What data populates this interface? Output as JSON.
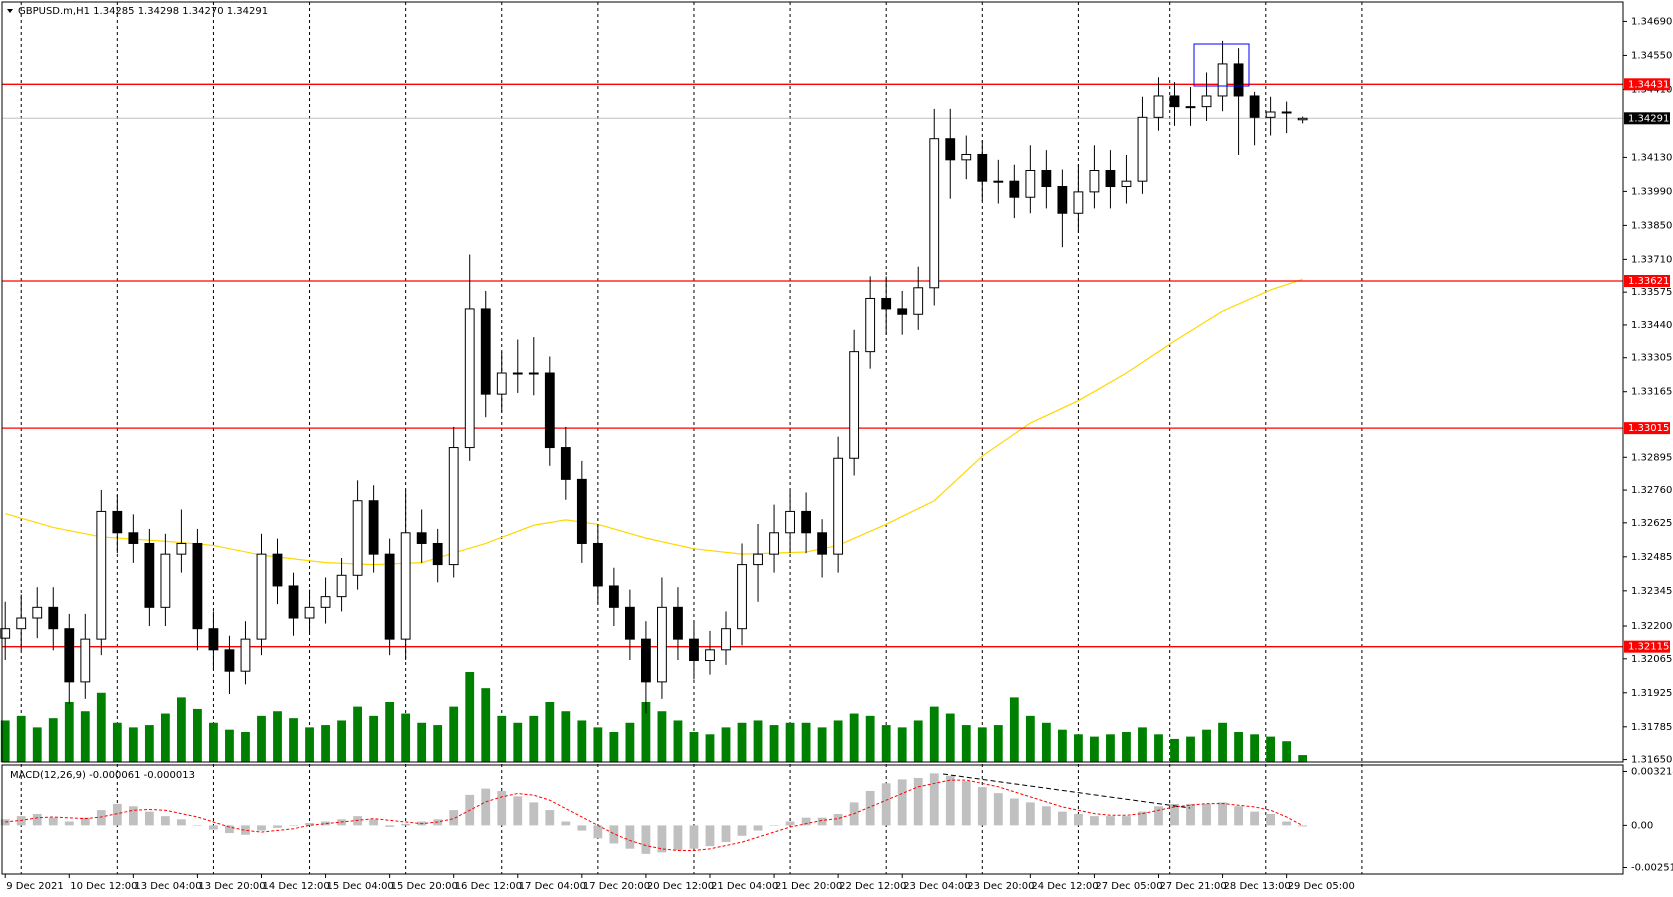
{
  "chart_data": {
    "type": "candlestick",
    "title": "GBPUSD.m,H1  1.34285 1.34298 1.34270 1.34291",
    "categories": [
      "9 Dec 2021",
      null,
      null,
      null,
      "10 Dec 12:00",
      null,
      null,
      null,
      "13 Dec 04:00",
      null,
      null,
      null,
      "13 Dec 20:00",
      null,
      null,
      null,
      "14 Dec 12:00",
      null,
      null,
      null,
      "15 Dec 04:00",
      null,
      null,
      null,
      "15 Dec 20:00",
      null,
      null,
      null,
      "16 Dec 12:00",
      null,
      null,
      null,
      "17 Dec 04:00",
      null,
      null,
      null,
      "17 Dec 20:00",
      null,
      null,
      null,
      "20 Dec 12:00",
      null,
      null,
      null,
      "21 Dec 04:00",
      null,
      null,
      null,
      "21 Dec 20:00",
      null,
      null,
      null,
      "22 Dec 12:00",
      null,
      null,
      null,
      "23 Dec 04:00",
      null,
      null,
      null,
      "23 Dec 20:00",
      null,
      null,
      null,
      "24 Dec 12:00",
      null,
      null,
      null,
      "27 Dec 05:00",
      null,
      null,
      null,
      "27 Dec 21:00",
      null,
      null,
      null,
      "28 Dec 13:00",
      null,
      null,
      null,
      "29 Dec 05:00",
      null
    ],
    "xlim": [
      -0.2,
      101
    ],
    "xgrid": [
      1,
      7,
      13,
      19,
      25,
      31,
      37,
      43,
      49,
      55,
      61,
      67,
      72.7,
      78.7,
      84.7
    ],
    "open": [
      1.3215,
      1.32189,
      1.32233,
      1.32277,
      1.32189,
      1.3197,
      1.32146,
      1.32672,
      1.32584,
      1.3254,
      1.32277,
      1.32496,
      1.3254,
      1.32189,
      1.32102,
      1.32014,
      1.32146,
      1.32496,
      1.32365,
      1.32233,
      1.32277,
      1.32321,
      1.32409,
      1.32716,
      1.32496,
      1.32146,
      1.32584,
      1.3254,
      1.32453,
      1.32935,
      1.33506,
      1.33155,
      1.33242,
      1.33242,
      1.33242,
      1.32935,
      1.32804,
      1.3254,
      1.32365,
      1.32277,
      1.32146,
      1.3197,
      1.32277,
      1.32146,
      1.32058,
      1.32102,
      1.32189,
      1.32453,
      1.32496,
      1.32584,
      1.32672,
      1.32584,
      1.32496,
      1.32891,
      1.3333,
      1.33549,
      1.33506,
      1.33484,
      1.33593,
      1.34207,
      1.3412,
      1.34142,
      1.34032,
      1.34032,
      1.33966,
      1.34076,
      1.3401,
      1.339,
      1.33988,
      1.34076,
      1.3401,
      1.34032,
      1.34295,
      1.34383,
      1.34339,
      1.34339,
      1.34383,
      1.34515,
      1.34383,
      1.34295,
      1.34317,
      1.34285
    ],
    "high": [
      1.323,
      1.3233,
      1.3236,
      1.3236,
      1.3225,
      1.3225,
      1.3276,
      1.3274,
      1.3266,
      1.326,
      1.3258,
      1.3268,
      1.326,
      1.3226,
      1.3216,
      1.3222,
      1.3258,
      1.3256,
      1.3242,
      1.3235,
      1.324,
      1.3248,
      1.328,
      1.3278,
      1.3256,
      1.3276,
      1.3268,
      1.326,
      1.3302,
      1.3373,
      1.3358,
      1.3333,
      1.3338,
      1.3339,
      1.3331,
      1.3302,
      1.3288,
      1.3262,
      1.3244,
      1.3235,
      1.3222,
      1.324,
      1.3236,
      1.3222,
      1.3218,
      1.3226,
      1.3254,
      1.3262,
      1.327,
      1.3276,
      1.3275,
      1.3264,
      1.3298,
      1.3342,
      1.3364,
      1.3364,
      1.3358,
      1.3368,
      1.3433,
      1.3433,
      1.3422,
      1.342,
      1.3412,
      1.341,
      1.3418,
      1.3416,
      1.3408,
      1.341,
      1.3418,
      1.3416,
      1.3414,
      1.3438,
      1.3446,
      1.3444,
      1.3442,
      1.3448,
      1.3461,
      1.3458,
      1.344,
      1.3438,
      1.3436,
      1.34298
    ],
    "low": [
      1.3206,
      1.321,
      1.3215,
      1.321,
      1.3188,
      1.319,
      1.3208,
      1.325,
      1.3246,
      1.322,
      1.322,
      1.3242,
      1.321,
      1.3202,
      1.3192,
      1.3196,
      1.3208,
      1.3229,
      1.3216,
      1.3217,
      1.3221,
      1.3226,
      1.3235,
      1.3242,
      1.3208,
      1.3206,
      1.3246,
      1.3238,
      1.324,
      1.3288,
      1.3306,
      1.3308,
      1.3316,
      1.3315,
      1.3286,
      1.3272,
      1.3246,
      1.3229,
      1.322,
      1.3206,
      1.3184,
      1.319,
      1.3206,
      1.3198,
      1.32,
      1.3204,
      1.3212,
      1.323,
      1.3242,
      1.325,
      1.325,
      1.324,
      1.3242,
      1.3282,
      1.3326,
      1.334,
      1.334,
      1.3342,
      1.3352,
      1.3396,
      1.3404,
      1.3395,
      1.3394,
      1.3388,
      1.339,
      1.3392,
      1.3376,
      1.3382,
      1.3392,
      1.3392,
      1.3394,
      1.3398,
      1.3424,
      1.3426,
      1.3426,
      1.3428,
      1.3432,
      1.3414,
      1.3418,
      1.3422,
      1.3423,
      1.3427
    ],
    "close": [
      1.32189,
      1.32233,
      1.32277,
      1.32189,
      1.3197,
      1.32146,
      1.32672,
      1.32584,
      1.3254,
      1.32277,
      1.32496,
      1.3254,
      1.32189,
      1.32102,
      1.32014,
      1.32146,
      1.32496,
      1.32365,
      1.32233,
      1.32277,
      1.32321,
      1.32409,
      1.32716,
      1.32496,
      1.32146,
      1.32584,
      1.3254,
      1.32453,
      1.32935,
      1.33506,
      1.33155,
      1.33242,
      1.33242,
      1.33242,
      1.32935,
      1.32804,
      1.3254,
      1.32365,
      1.32277,
      1.32146,
      1.3197,
      1.32277,
      1.32146,
      1.32058,
      1.32102,
      1.32189,
      1.32453,
      1.32496,
      1.32584,
      1.32672,
      1.32584,
      1.32496,
      1.32891,
      1.3333,
      1.33549,
      1.33506,
      1.33484,
      1.33593,
      1.34207,
      1.3412,
      1.34142,
      1.34032,
      1.34032,
      1.33966,
      1.34076,
      1.3401,
      1.339,
      1.33988,
      1.34076,
      1.3401,
      1.34032,
      1.34295,
      1.34383,
      1.34339,
      1.34339,
      1.34383,
      1.34515,
      1.34383,
      1.34295,
      1.34317,
      1.34317,
      1.34291
    ],
    "bull_color": "#ffffff",
    "bear_color": "#000000",
    "ylim": [
      1.3164,
      1.3477
    ],
    "yticks": [
      {
        "value": 1.3469,
        "label": "1.34690"
      },
      {
        "value": 1.3455,
        "label": "1.34550"
      },
      {
        "value": 1.3441,
        "label": "1.34410"
      },
      {
        "value": 1.3413,
        "label": "1.34130"
      },
      {
        "value": 1.3399,
        "label": "1.33990"
      },
      {
        "value": 1.3385,
        "label": "1.33850"
      },
      {
        "value": 1.3371,
        "label": "1.33710"
      },
      1.33575,
      {
        "value": 1.3344,
        "label": "1.33440"
      },
      1.33305,
      1.33165,
      1.32895,
      {
        "value": 1.3276,
        "label": "1.32760"
      },
      1.32625,
      1.32485,
      1.32345,
      {
        "value": 1.322,
        "label": "1.32200"
      },
      1.32065,
      1.31925,
      1.31785,
      {
        "value": 1.3165,
        "label": "1.31650"
      }
    ],
    "levels": [
      1.34431,
      1.33621,
      1.33015,
      1.32115
    ],
    "level_color": "#ff0000",
    "last_price": 1.34291,
    "moving_average": {
      "color": "#ffd700",
      "x": [
        0,
        3,
        6,
        10,
        13,
        16,
        20,
        23,
        26,
        30,
        33,
        35,
        37,
        40,
        43,
        46,
        50,
        52,
        55,
        58,
        61,
        64,
        67,
        70,
        73,
        76,
        79,
        81
      ],
      "values": [
        1.32663,
        1.32606,
        1.32567,
        1.32549,
        1.32532,
        1.32492,
        1.32461,
        1.32453,
        1.32461,
        1.3254,
        1.32615,
        1.32637,
        1.32619,
        1.32562,
        1.32518,
        1.32496,
        1.32505,
        1.32532,
        1.32619,
        1.32716,
        1.329,
        1.33036,
        1.33128,
        1.33242,
        1.33374,
        1.33497,
        1.33584,
        1.33628
      ]
    },
    "volume": {
      "color": "#008000",
      "values": [
        1800,
        2000,
        1500,
        1900,
        2600,
        2200,
        3000,
        1700,
        1500,
        1600,
        2100,
        2800,
        2300,
        1700,
        1400,
        1300,
        2000,
        2200,
        1900,
        1500,
        1600,
        1800,
        2400,
        2000,
        2600,
        2100,
        1700,
        1600,
        2400,
        3900,
        3200,
        2000,
        1700,
        2000,
        2600,
        2200,
        1800,
        1500,
        1300,
        1700,
        2600,
        2200,
        1800,
        1300,
        1200,
        1500,
        1700,
        1800,
        1600,
        1700,
        1700,
        1500,
        1800,
        2100,
        2000,
        1600,
        1500,
        1800,
        2400,
        2100,
        1600,
        1500,
        1600,
        2800,
        2000,
        1700,
        1400,
        1200,
        1100,
        1200,
        1300,
        1500,
        1200,
        1000,
        1100,
        1400,
        1700,
        1300,
        1200,
        1100,
        900,
        300
      ]
    },
    "macd": {
      "title": "MACD(12,26,9) -0.000061 -0.000013",
      "ylim": [
        -0.0029,
        0.0036
      ],
      "yticks": [
        0.003214,
        {
          "value": 0,
          "label": "0.00"
        },
        -0.002512
      ],
      "histogram": {
        "color": "#c0c0c0",
        "values": [
          0.00036,
          0.00055,
          0.00068,
          0.00046,
          0.00023,
          0.00046,
          0.00091,
          0.00128,
          0.00114,
          0.00082,
          0.00055,
          0.00036,
          0,
          -0.00025,
          -0.00046,
          -0.00056,
          -0.00031,
          -0.00015,
          0,
          0.00014,
          0.00023,
          0.00036,
          0.00055,
          0.00036,
          -9e-05,
          9e-05,
          0.00023,
          0.00036,
          0.00091,
          0.00182,
          0.00219,
          0.00205,
          0.00173,
          0.00137,
          0.00091,
          0.00023,
          -0.00031,
          -0.00077,
          -0.00108,
          -0.00139,
          -0.0017,
          -0.00161,
          -0.00148,
          -0.00139,
          -0.00124,
          -0.00099,
          -0.00062,
          -0.00031,
          0,
          0.00023,
          0.00046,
          0.00046,
          0.00068,
          0.00137,
          0.00205,
          0.00251,
          0.00274,
          0.00283,
          0.0031,
          0.00296,
          0.00264,
          0.00228,
          0.00192,
          0.0016,
          0.00137,
          0.00114,
          0.00082,
          0.00068,
          0.00055,
          0.00055,
          0.00055,
          0.00082,
          0.00114,
          0.00128,
          0.00128,
          0.00128,
          0.00137,
          0.00114,
          0.00082,
          0.00068,
          0.00023,
          -6.1e-05
        ]
      },
      "signal": {
        "color": "#ff0000",
        "values": [
          0.0002,
          0.0003,
          0.00045,
          0.0005,
          0.00045,
          0.0004,
          0.0005,
          0.0007,
          0.0009,
          0.00095,
          0.0009,
          0.0007,
          0.0005,
          0.0002,
          -0.0001,
          -0.0003,
          -0.0004,
          -0.0003,
          -0.0002,
          0,
          0.0001,
          0.0002,
          0.0003,
          0.0004,
          0.0003,
          0.0002,
          0.0001,
          0.0002,
          0.0004,
          0.0009,
          0.0014,
          0.0017,
          0.0019,
          0.0018,
          0.0015,
          0.001,
          0.0005,
          0,
          -0.0005,
          -0.0009,
          -0.0012,
          -0.0014,
          -0.0015,
          -0.0015,
          -0.0014,
          -0.0012,
          -0.001,
          -0.0007,
          -0.0004,
          -0.0001,
          0.0001,
          0.0003,
          0.0004,
          0.0007,
          0.0011,
          0.0015,
          0.0019,
          0.0023,
          0.0025,
          0.0027,
          0.0027,
          0.0025,
          0.0023,
          0.002,
          0.0017,
          0.0014,
          0.0011,
          0.0009,
          0.0007,
          0.0006,
          0.0006,
          0.0007,
          0.0009,
          0.0011,
          0.0012,
          0.0013,
          0.0013,
          0.0012,
          0.0011,
          0.0009,
          0.0005,
          -1.3e-05
        ]
      }
    }
  }
}
